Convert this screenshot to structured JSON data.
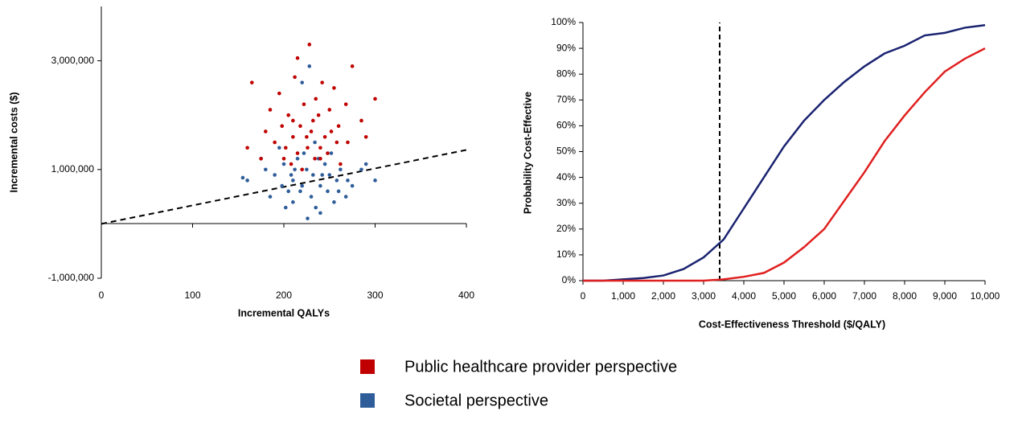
{
  "chart_data": [
    {
      "type": "scatter",
      "x_label": "Incremental QALYs",
      "y_label": "Incremental costs ($)",
      "xlim": [
        0,
        400
      ],
      "xticks": [
        0,
        100,
        200,
        300,
        400
      ],
      "ylim": [
        -1000000,
        4000000
      ],
      "yticks": [
        {
          "value": -1000000,
          "label": "-1,000,000"
        },
        {
          "value": 1000000,
          "label": "1,000,000"
        },
        {
          "value": 3000000,
          "label": "3,000,000"
        }
      ],
      "ref_line": {
        "x": [
          0,
          400
        ],
        "y": [
          0,
          1360000
        ]
      },
      "series": [
        {
          "name": "Public healthcare provider perspective",
          "color": "#c00000",
          "x": [
            225,
            210,
            240,
            200,
            250,
            230,
            215,
            260,
            190,
            235,
            220,
            245,
            205,
            270,
            180,
            228,
            215,
            255,
            195,
            240,
            285,
            165,
            300,
            175,
            210,
            232,
            248,
            222,
            262,
            198,
            275,
            160,
            290,
            212,
            238,
            185,
            252,
            226,
            208,
            268,
            242,
            218,
            202,
            258,
            234
          ],
          "values": [
            1600000,
            1900000,
            1400000,
            1200000,
            2100000,
            1700000,
            1300000,
            1800000,
            1500000,
            2300000,
            1000000,
            1600000,
            2000000,
            1500000,
            1700000,
            3300000,
            3050000,
            2500000,
            2400000,
            1200000,
            1900000,
            2600000,
            2300000,
            1200000,
            1600000,
            1900000,
            1300000,
            2200000,
            1100000,
            1800000,
            2900000,
            1400000,
            1600000,
            2700000,
            2000000,
            2100000,
            1700000,
            1400000,
            1100000,
            2200000,
            2600000,
            1800000,
            1400000,
            1500000,
            1200000
          ]
        },
        {
          "name": "Societal perspective",
          "color": "#2e5d9a",
          "x": [
            225,
            210,
            240,
            200,
            250,
            230,
            215,
            260,
            190,
            235,
            220,
            245,
            205,
            270,
            180,
            228,
            195,
            255,
            240,
            285,
            160,
            300,
            175,
            210,
            232,
            248,
            222,
            262,
            198,
            275,
            155,
            290,
            212,
            238,
            185,
            252,
            226,
            208,
            268,
            242,
            218,
            202,
            258,
            234,
            220
          ],
          "values": [
            1000000,
            800000,
            700000,
            1100000,
            900000,
            500000,
            1200000,
            600000,
            900000,
            300000,
            700000,
            1100000,
            600000,
            800000,
            1000000,
            2900000,
            1400000,
            400000,
            200000,
            1000000,
            800000,
            800000,
            1200000,
            400000,
            900000,
            600000,
            1300000,
            1000000,
            700000,
            700000,
            850000,
            1100000,
            1000000,
            1200000,
            500000,
            1300000,
            100000,
            900000,
            500000,
            900000,
            600000,
            300000,
            800000,
            1500000,
            2600000
          ]
        }
      ]
    },
    {
      "type": "line",
      "x_label": "Cost-Effectiveness Threshold ($/QALY)",
      "y_label": "Probability Cost-Effective",
      "xlim": [
        0,
        10000
      ],
      "xticks": [
        0,
        {
          "value": 1000,
          "label": "1,000"
        },
        {
          "value": 2000,
          "label": "2,000"
        },
        {
          "value": 3000,
          "label": "3,000"
        },
        {
          "value": 4000,
          "label": "4,000"
        },
        {
          "value": 5000,
          "label": "5,000"
        },
        {
          "value": 6000,
          "label": "6,000"
        },
        {
          "value": 7000,
          "label": "7,000"
        },
        {
          "value": 8000,
          "label": "8,000"
        },
        {
          "value": 9000,
          "label": "9,000"
        },
        {
          "value": 10000,
          "label": "10,000"
        }
      ],
      "ylim": [
        0,
        100
      ],
      "yticks": [
        {
          "value": 0,
          "label": "0%"
        },
        {
          "value": 10,
          "label": "10%"
        },
        {
          "value": 20,
          "label": "20%"
        },
        {
          "value": 30,
          "label": "30%"
        },
        {
          "value": 40,
          "label": "40%"
        },
        {
          "value": 50,
          "label": "50%"
        },
        {
          "value": 60,
          "label": "60%"
        },
        {
          "value": 70,
          "label": "70%"
        },
        {
          "value": 80,
          "label": "80%"
        },
        {
          "value": 90,
          "label": "90%"
        },
        {
          "value": 100,
          "label": "100%"
        }
      ],
      "ref_x": 3400,
      "x": [
        0,
        500,
        1000,
        1500,
        2000,
        2500,
        3000,
        3500,
        4000,
        4500,
        5000,
        5500,
        6000,
        6500,
        7000,
        7500,
        8000,
        8500,
        9000,
        9500,
        10000
      ],
      "series": [
        {
          "color": "#1a2370",
          "values": [
            0,
            0,
            0.5,
            1,
            2,
            4.5,
            9,
            16,
            28,
            40,
            52,
            62,
            70,
            77,
            83,
            88,
            91,
            95,
            96,
            98,
            99
          ]
        },
        {
          "color": "#e02020",
          "values": [
            0,
            0,
            0,
            0,
            0,
            0,
            0,
            0.5,
            1.5,
            3,
            7,
            13,
            20,
            31,
            42,
            54,
            64,
            73,
            81,
            86,
            90
          ]
        }
      ]
    }
  ]
}
